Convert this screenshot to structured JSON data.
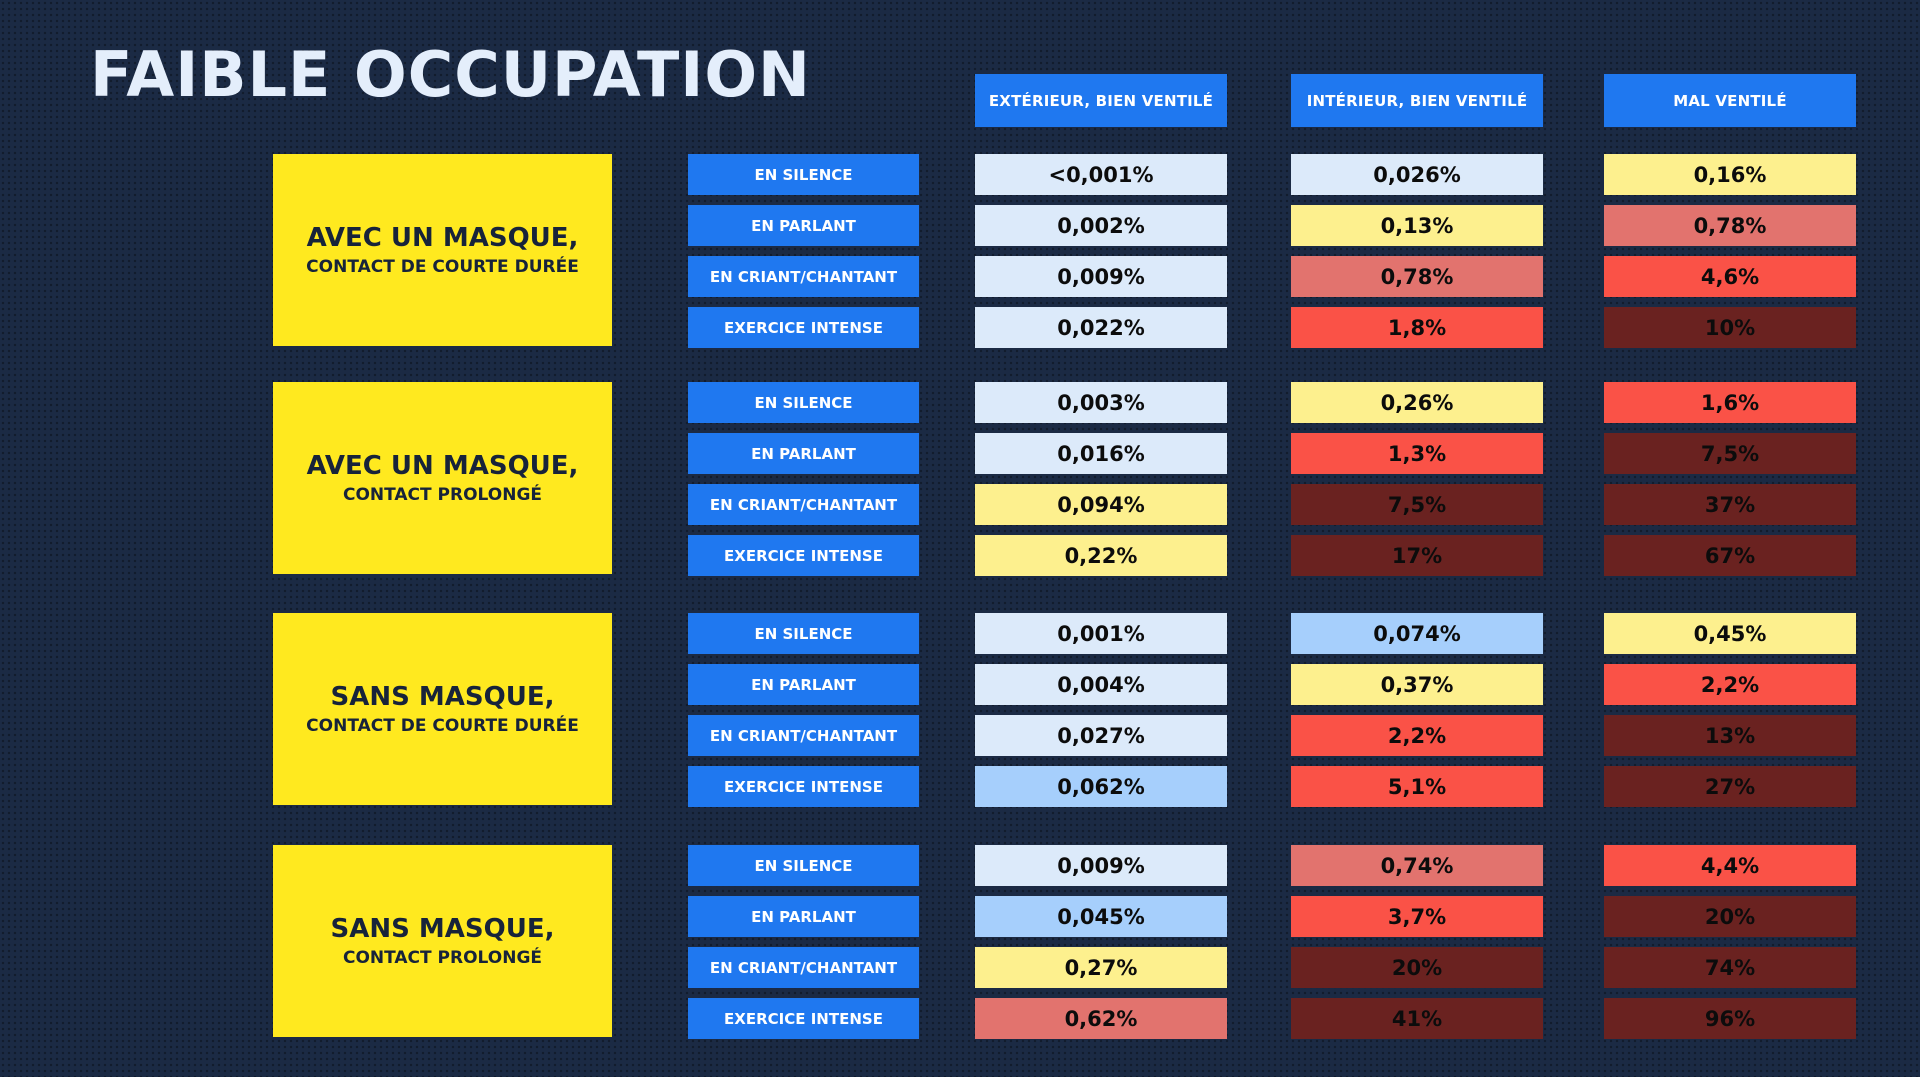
{
  "title": "FAIBLE OCCUPATION",
  "columns": [
    "EXTÉRIEUR, BIEN VENTILÉ",
    "INTÉRIEUR, BIEN VENTILÉ",
    "MAL VENTILÉ"
  ],
  "activities": [
    "EN SILENCE",
    "EN PARLANT",
    "EN CRIANT/CHANTANT",
    "EXERCICE INTENSE"
  ],
  "palette": {
    "background": "#1b2a44",
    "header_blue": "#1f78f0",
    "label_yellow": "#ffe91f",
    "very_low": "#dceafa",
    "low": "#a6cffc",
    "medium": "#fdf08e",
    "elevated": "#e2736e",
    "high": "#fa5247",
    "very_high": "#6a2220"
  },
  "groups": [
    {
      "title": "AVEC UN MASQUE,",
      "subtitle": "CONTACT DE COURTE DURÉE",
      "rows": [
        [
          "<0,001%",
          "0,026%",
          "0,16%"
        ],
        [
          "0,002%",
          "0,13%",
          "0,78%"
        ],
        [
          "0,009%",
          "0,78%",
          "4,6%"
        ],
        [
          "0,022%",
          "1,8%",
          "10%"
        ]
      ],
      "levels": [
        [
          "very_low",
          "very_low",
          "medium"
        ],
        [
          "very_low",
          "medium",
          "elevated"
        ],
        [
          "very_low",
          "elevated",
          "high"
        ],
        [
          "very_low",
          "high",
          "very_high"
        ]
      ]
    },
    {
      "title": "AVEC UN MASQUE,",
      "subtitle": "CONTACT PROLONGÉ",
      "rows": [
        [
          "0,003%",
          "0,26%",
          "1,6%"
        ],
        [
          "0,016%",
          "1,3%",
          "7,5%"
        ],
        [
          "0,094%",
          "7,5%",
          "37%"
        ],
        [
          "0,22%",
          "17%",
          "67%"
        ]
      ],
      "levels": [
        [
          "very_low",
          "medium",
          "high"
        ],
        [
          "very_low",
          "high",
          "very_high"
        ],
        [
          "medium",
          "very_high",
          "very_high"
        ],
        [
          "medium",
          "very_high",
          "very_high"
        ]
      ]
    },
    {
      "title": "SANS MASQUE,",
      "subtitle": "CONTACT DE COURTE DURÉE",
      "rows": [
        [
          "0,001%",
          "0,074%",
          "0,45%"
        ],
        [
          "0,004%",
          "0,37%",
          "2,2%"
        ],
        [
          "0,027%",
          "2,2%",
          "13%"
        ],
        [
          "0,062%",
          "5,1%",
          "27%"
        ]
      ],
      "levels": [
        [
          "very_low",
          "low",
          "medium"
        ],
        [
          "very_low",
          "medium",
          "high"
        ],
        [
          "very_low",
          "high",
          "very_high"
        ],
        [
          "low",
          "high",
          "very_high"
        ]
      ]
    },
    {
      "title": "SANS MASQUE,",
      "subtitle": "CONTACT PROLONGÉ",
      "rows": [
        [
          "0,009%",
          "0,74%",
          "4,4%"
        ],
        [
          "0,045%",
          "3,7%",
          "20%"
        ],
        [
          "0,27%",
          "20%",
          "74%"
        ],
        [
          "0,62%",
          "41%",
          "96%"
        ]
      ],
      "levels": [
        [
          "very_low",
          "elevated",
          "high"
        ],
        [
          "low",
          "high",
          "very_high"
        ],
        [
          "medium",
          "very_high",
          "very_high"
        ],
        [
          "elevated",
          "very_high",
          "very_high"
        ]
      ]
    }
  ]
}
